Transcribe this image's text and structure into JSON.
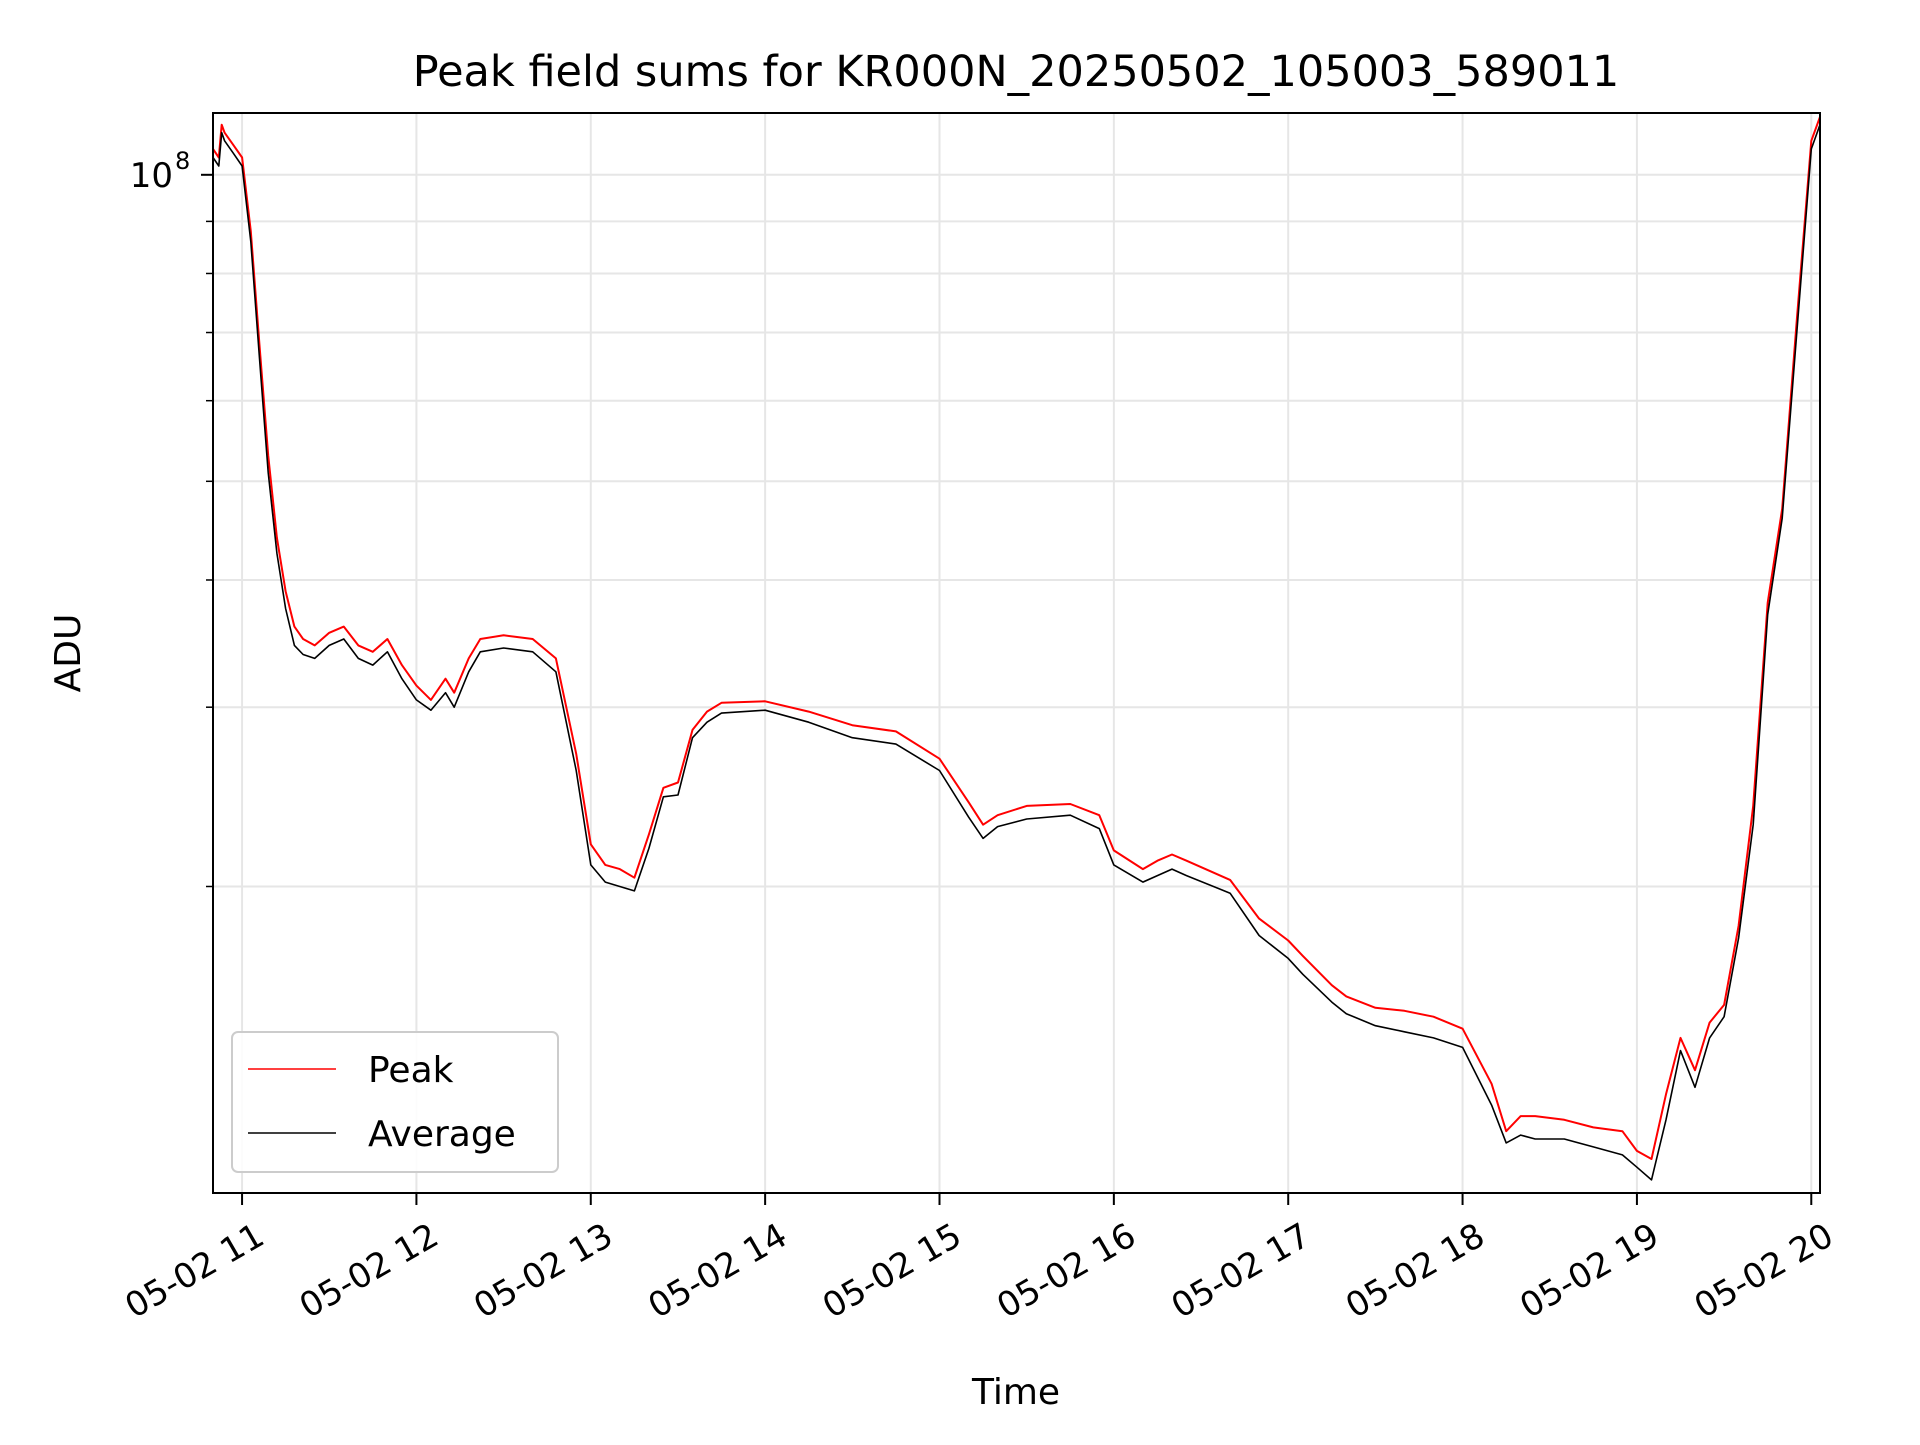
{
  "chart_data": {
    "type": "line",
    "title": "Peak field sums for KR000N_20250502_105003_589011",
    "xlabel": "Time",
    "ylabel": "ADU",
    "y_scale": "log",
    "ylim": [
      10000000,
      115000000
    ],
    "xlim": [
      "2025-05-02 10:50",
      "2025-05-02 20:03"
    ],
    "grid": true,
    "legend_position": "lower-left",
    "x_tick_labels": [
      {
        "value": "2025-05-02 11:00",
        "label": "05-02 11"
      },
      {
        "value": "2025-05-02 12:00",
        "label": "05-02 12"
      },
      {
        "value": "2025-05-02 13:00",
        "label": "05-02 13"
      },
      {
        "value": "2025-05-02 14:00",
        "label": "05-02 14"
      },
      {
        "value": "2025-05-02 15:00",
        "label": "05-02 15"
      },
      {
        "value": "2025-05-02 16:00",
        "label": "05-02 16"
      },
      {
        "value": "2025-05-02 17:00",
        "label": "05-02 17"
      },
      {
        "value": "2025-05-02 18:00",
        "label": "05-02 18"
      },
      {
        "value": "2025-05-02 19:00",
        "label": "05-02 19"
      },
      {
        "value": "2025-05-02 20:00",
        "label": "05-02 20"
      }
    ],
    "y_tick_labels": [
      {
        "value": 100000000,
        "label": "10",
        "exponent": "8"
      }
    ],
    "y_minor_ticks": [
      20000000,
      30000000,
      40000000,
      50000000,
      60000000,
      70000000,
      80000000,
      90000000
    ],
    "x": [
      "2025-05-02 10:50",
      "2025-05-02 10:52",
      "2025-05-02 10:53",
      "2025-05-02 10:54",
      "2025-05-02 10:57",
      "2025-05-02 11:00",
      "2025-05-02 11:03",
      "2025-05-02 11:06",
      "2025-05-02 11:09",
      "2025-05-02 11:12",
      "2025-05-02 11:15",
      "2025-05-02 11:18",
      "2025-05-02 11:21",
      "2025-05-02 11:25",
      "2025-05-02 11:30",
      "2025-05-02 11:35",
      "2025-05-02 11:40",
      "2025-05-02 11:45",
      "2025-05-02 11:50",
      "2025-05-02 11:55",
      "2025-05-02 12:00",
      "2025-05-02 12:05",
      "2025-05-02 12:10",
      "2025-05-02 12:13",
      "2025-05-02 12:18",
      "2025-05-02 12:22",
      "2025-05-02 12:30",
      "2025-05-02 12:40",
      "2025-05-02 12:48",
      "2025-05-02 12:55",
      "2025-05-02 13:00",
      "2025-05-02 13:05",
      "2025-05-02 13:10",
      "2025-05-02 13:15",
      "2025-05-02 13:20",
      "2025-05-02 13:25",
      "2025-05-02 13:30",
      "2025-05-02 13:35",
      "2025-05-02 13:40",
      "2025-05-02 13:45",
      "2025-05-02 14:00",
      "2025-05-02 14:15",
      "2025-05-02 14:30",
      "2025-05-02 14:45",
      "2025-05-02 15:00",
      "2025-05-02 15:10",
      "2025-05-02 15:15",
      "2025-05-02 15:20",
      "2025-05-02 15:30",
      "2025-05-02 15:45",
      "2025-05-02 15:55",
      "2025-05-02 16:00",
      "2025-05-02 16:10",
      "2025-05-02 16:15",
      "2025-05-02 16:20",
      "2025-05-02 16:25",
      "2025-05-02 16:40",
      "2025-05-02 16:50",
      "2025-05-02 17:00",
      "2025-05-02 17:05",
      "2025-05-02 17:15",
      "2025-05-02 17:20",
      "2025-05-02 17:30",
      "2025-05-02 17:40",
      "2025-05-02 17:50",
      "2025-05-02 18:00",
      "2025-05-02 18:10",
      "2025-05-02 18:15",
      "2025-05-02 18:20",
      "2025-05-02 18:25",
      "2025-05-02 18:35",
      "2025-05-02 18:45",
      "2025-05-02 18:55",
      "2025-05-02 19:00",
      "2025-05-02 19:05",
      "2025-05-02 19:10",
      "2025-05-02 19:15",
      "2025-05-02 19:20",
      "2025-05-02 19:25",
      "2025-05-02 19:30",
      "2025-05-02 19:35",
      "2025-05-02 19:40",
      "2025-05-02 19:45",
      "2025-05-02 19:50",
      "2025-05-02 19:55",
      "2025-05-02 20:00",
      "2025-05-02 20:03"
    ],
    "series": [
      {
        "name": "Peak",
        "color": "#ff0000",
        "values": [
          106000000,
          104000000,
          112000000,
          110000000,
          107000000,
          104000000,
          88000000,
          68000000,
          53000000,
          44000000,
          39000000,
          36000000,
          35000000,
          34500000,
          35500000,
          36000000,
          34500000,
          34000000,
          35000000,
          33000000,
          31500000,
          30500000,
          32000000,
          31000000,
          33500000,
          35000000,
          35300000,
          35000000,
          33500000,
          27000000,
          22000000,
          21000000,
          20800000,
          20400000,
          22500000,
          25000000,
          25300000,
          28500000,
          29700000,
          30300000,
          30400000,
          29700000,
          28800000,
          28400000,
          26700000,
          24200000,
          23000000,
          23500000,
          24000000,
          24100000,
          23500000,
          21700000,
          20800000,
          21200000,
          21500000,
          21200000,
          20300000,
          18600000,
          17700000,
          17100000,
          16000000,
          15600000,
          15200000,
          15100000,
          14900000,
          14500000,
          12800000,
          11500000,
          11900000,
          11900000,
          11800000,
          11600000,
          11500000,
          11000000,
          10800000,
          12500000,
          14200000,
          13200000,
          14700000,
          15300000,
          18300000,
          24000000,
          38000000,
          47000000,
          72000000,
          108000000,
          114000000
        ]
      },
      {
        "name": "Average",
        "color": "#000000",
        "values": [
          104000000,
          102000000,
          110000000,
          108000000,
          105000000,
          102000000,
          86000000,
          66000000,
          51000000,
          42500000,
          37500000,
          34500000,
          33800000,
          33500000,
          34500000,
          35000000,
          33500000,
          33000000,
          34000000,
          32000000,
          30500000,
          29800000,
          31000000,
          30000000,
          32500000,
          34000000,
          34300000,
          34000000,
          32500000,
          26000000,
          21000000,
          20200000,
          20000000,
          19800000,
          21800000,
          24500000,
          24600000,
          28000000,
          29000000,
          29600000,
          29800000,
          29000000,
          28000000,
          27600000,
          26000000,
          23400000,
          22300000,
          22900000,
          23300000,
          23500000,
          22800000,
          21000000,
          20200000,
          20500000,
          20800000,
          20500000,
          19700000,
          17900000,
          17000000,
          16400000,
          15400000,
          15000000,
          14600000,
          14400000,
          14200000,
          13900000,
          12200000,
          11200000,
          11400000,
          11300000,
          11300000,
          11100000,
          10900000,
          10600000,
          10300000,
          11800000,
          13800000,
          12700000,
          14200000,
          14900000,
          17800000,
          23000000,
          37000000,
          46000000,
          70000000,
          106000000,
          112000000
        ]
      }
    ]
  }
}
